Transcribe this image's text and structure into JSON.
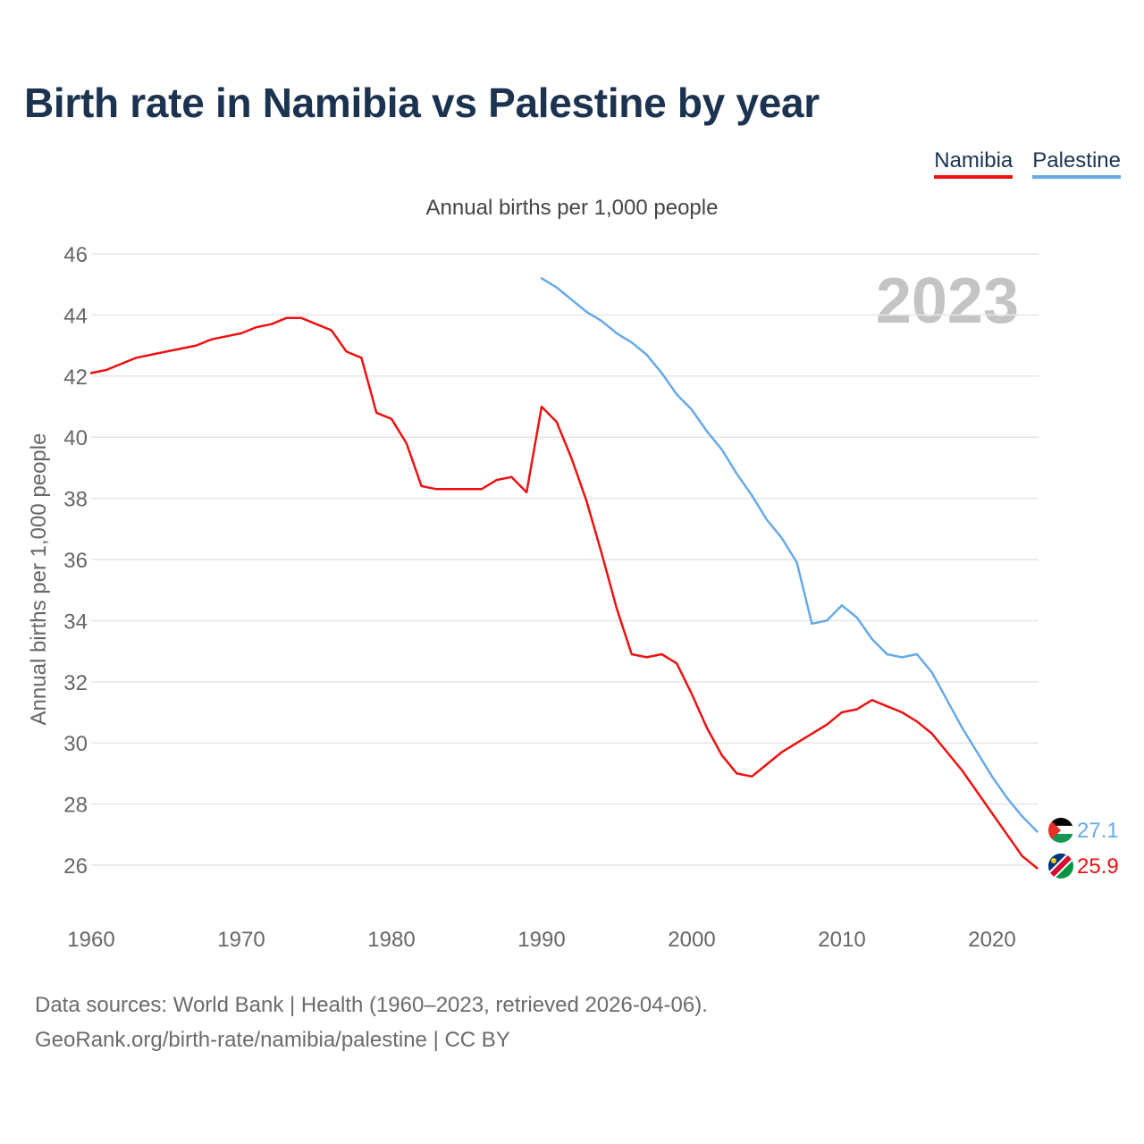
{
  "title": "Birth rate in Namibia vs Palestine by year",
  "legend": [
    {
      "label": "Namibia",
      "color": "#ee1111"
    },
    {
      "label": "Palestine",
      "color": "#66aae8"
    }
  ],
  "footer": {
    "line1": "Data sources: World Bank | Health (1960–2023, retrieved 2026-04-06).",
    "line2": "GeoRank.org/birth-rate/namibia/palestine | CC BY"
  },
  "chart_data": {
    "type": "line",
    "title": "Birth rate in Namibia vs Palestine by year",
    "subtitle": "Annual births per 1,000 people",
    "xlabel": "",
    "ylabel": "Annual births per 1,000 people",
    "year_label": "2023",
    "xlim": [
      1960,
      2023
    ],
    "ylim": [
      25,
      46
    ],
    "yticks": [
      26,
      28,
      30,
      32,
      34,
      36,
      38,
      40,
      42,
      44,
      46
    ],
    "xticks": [
      1960,
      1970,
      1980,
      1990,
      2000,
      2010,
      2020
    ],
    "grid": true,
    "legend_position": "top-right",
    "series": [
      {
        "name": "Namibia",
        "color": "#ee1111",
        "flag": "namibia-flag",
        "end_label": "25.9",
        "x": [
          1960,
          1961,
          1962,
          1963,
          1964,
          1965,
          1966,
          1967,
          1968,
          1969,
          1970,
          1971,
          1972,
          1973,
          1974,
          1975,
          1976,
          1977,
          1978,
          1979,
          1980,
          1981,
          1982,
          1983,
          1984,
          1985,
          1986,
          1987,
          1988,
          1989,
          1990,
          1991,
          1992,
          1993,
          1994,
          1995,
          1996,
          1997,
          1998,
          1999,
          2000,
          2001,
          2002,
          2003,
          2004,
          2005,
          2006,
          2007,
          2008,
          2009,
          2010,
          2011,
          2012,
          2013,
          2014,
          2015,
          2016,
          2017,
          2018,
          2019,
          2020,
          2021,
          2022,
          2023
        ],
        "values": [
          42.1,
          42.2,
          42.4,
          42.6,
          42.7,
          42.8,
          42.9,
          43.0,
          43.2,
          43.3,
          43.4,
          43.6,
          43.7,
          43.9,
          43.9,
          43.7,
          43.5,
          42.8,
          42.6,
          40.8,
          40.6,
          39.8,
          38.4,
          38.3,
          38.3,
          38.3,
          38.3,
          38.6,
          38.7,
          38.2,
          41.0,
          40.5,
          39.3,
          37.9,
          36.2,
          34.4,
          32.9,
          32.8,
          32.9,
          32.6,
          31.6,
          30.5,
          29.6,
          29.0,
          28.9,
          29.3,
          29.7,
          30.0,
          30.3,
          30.6,
          31.0,
          31.1,
          31.4,
          31.2,
          31.0,
          30.7,
          30.3,
          29.7,
          29.1,
          28.4,
          27.7,
          27.0,
          26.3,
          25.9
        ]
      },
      {
        "name": "Palestine",
        "color": "#66aae8",
        "flag": "palestine-flag",
        "end_label": "27.1",
        "x": [
          1990,
          1991,
          1992,
          1993,
          1994,
          1995,
          1996,
          1997,
          1998,
          1999,
          2000,
          2001,
          2002,
          2003,
          2004,
          2005,
          2006,
          2007,
          2008,
          2009,
          2010,
          2011,
          2012,
          2013,
          2014,
          2015,
          2016,
          2017,
          2018,
          2019,
          2020,
          2021,
          2022,
          2023
        ],
        "values": [
          45.2,
          44.9,
          44.5,
          44.1,
          43.8,
          43.4,
          43.1,
          42.7,
          42.1,
          41.4,
          40.9,
          40.2,
          39.6,
          38.8,
          38.1,
          37.3,
          36.7,
          35.9,
          33.9,
          34.0,
          34.5,
          34.1,
          33.4,
          32.9,
          32.8,
          32.9,
          32.3,
          31.4,
          30.5,
          29.7,
          28.9,
          28.2,
          27.6,
          27.1
        ]
      }
    ]
  }
}
